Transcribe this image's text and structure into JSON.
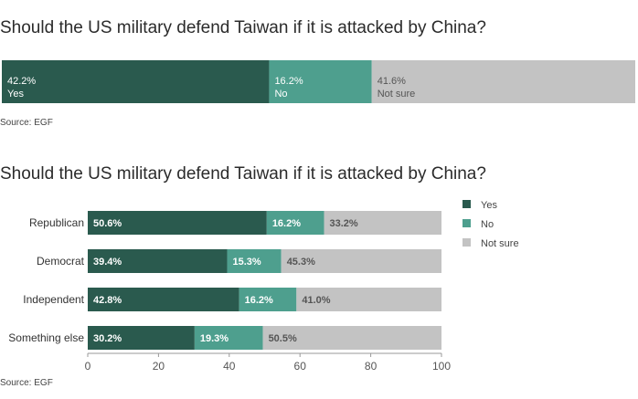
{
  "colors": {
    "yes": "#2a5a4e",
    "no": "#4e9f8e",
    "not_sure": "#c3c3c3"
  },
  "chart_data": [
    {
      "type": "bar",
      "orientation": "horizontal",
      "stacked": true,
      "title": "Should the US military defend Taiwan if it is attacked by China?",
      "source": "Source: EGF",
      "segments": [
        {
          "name": "Yes",
          "value": 42.2,
          "label": "42.2%"
        },
        {
          "name": "No",
          "value": 16.2,
          "label": "16.2%"
        },
        {
          "name": "Not sure",
          "value": 41.6,
          "label": "41.6%"
        }
      ]
    },
    {
      "type": "bar",
      "orientation": "horizontal",
      "stacked": true,
      "title": "Should the US military defend Taiwan if it is attacked by China?",
      "source": "Source: EGF",
      "categories": [
        "Republican",
        "Democrat",
        "Independent",
        "Something else"
      ],
      "series": [
        {
          "name": "Yes",
          "values": [
            50.6,
            39.4,
            42.8,
            30.2
          ]
        },
        {
          "name": "No",
          "values": [
            16.2,
            15.3,
            16.2,
            19.3
          ]
        },
        {
          "name": "Not sure",
          "values": [
            33.2,
            45.3,
            41.0,
            50.5
          ]
        }
      ],
      "data_labels": [
        [
          "50.6%",
          "16.2%",
          "33.2%"
        ],
        [
          "39.4%",
          "15.3%",
          "45.3%"
        ],
        [
          "42.8%",
          "16.2%",
          "41.0%"
        ],
        [
          "30.2%",
          "19.3%",
          "50.5%"
        ]
      ],
      "x_ticks": [
        "0",
        "20",
        "40",
        "60",
        "80",
        "100"
      ],
      "xlim": [
        0,
        100
      ],
      "grid": false,
      "legend": "top-right"
    }
  ]
}
